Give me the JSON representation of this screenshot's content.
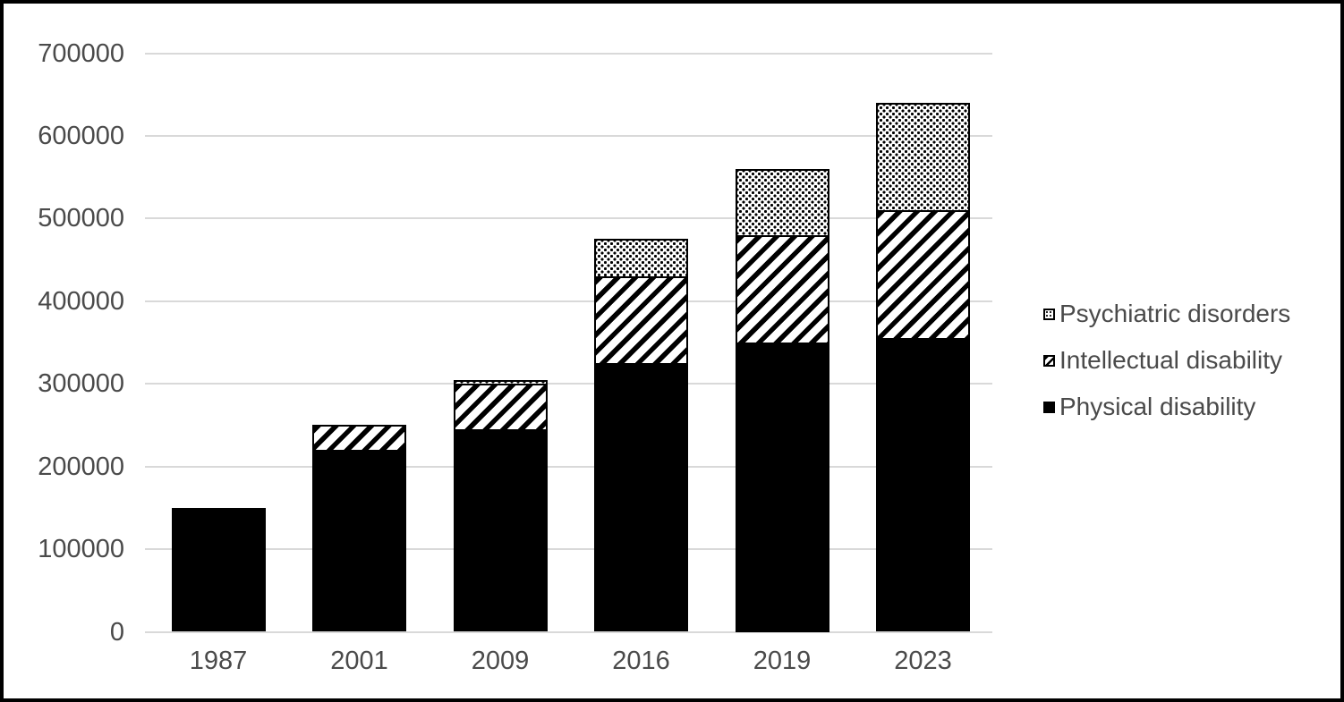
{
  "chart_data": {
    "type": "bar",
    "stacked": true,
    "orientation": "vertical",
    "categories": [
      "1987",
      "2001",
      "2009",
      "2016",
      "2019",
      "2023"
    ],
    "series": [
      {
        "name": "Physical disability",
        "pattern": "solid",
        "values": [
          150000,
          220000,
          245000,
          325000,
          350000,
          355000
        ]
      },
      {
        "name": "Intellectual disability",
        "pattern": "stripes",
        "values": [
          0,
          30000,
          55000,
          105000,
          130000,
          155000
        ]
      },
      {
        "name": "Psychiatric disorders",
        "pattern": "dots",
        "values": [
          0,
          0,
          5000,
          45000,
          80000,
          130000
        ]
      }
    ],
    "stack_totals": [
      150000,
      250000,
      305000,
      475000,
      560000,
      640000
    ],
    "xlabel": "",
    "ylabel": "",
    "ylim": [
      0,
      700000
    ],
    "yticks": [
      0,
      100000,
      200000,
      300000,
      400000,
      500000,
      600000,
      700000
    ],
    "grid": true,
    "legend_position": "right",
    "legend_order": [
      "Psychiatric disorders",
      "Intellectual disability",
      "Physical disability"
    ],
    "style": {
      "bar_ink": "#000000",
      "pattern_background": "#ffffff",
      "gridline_color": "#d9d9d9",
      "text_color": "#4a4a4a",
      "frame_border_color": "#000000",
      "background": "#ffffff"
    }
  }
}
